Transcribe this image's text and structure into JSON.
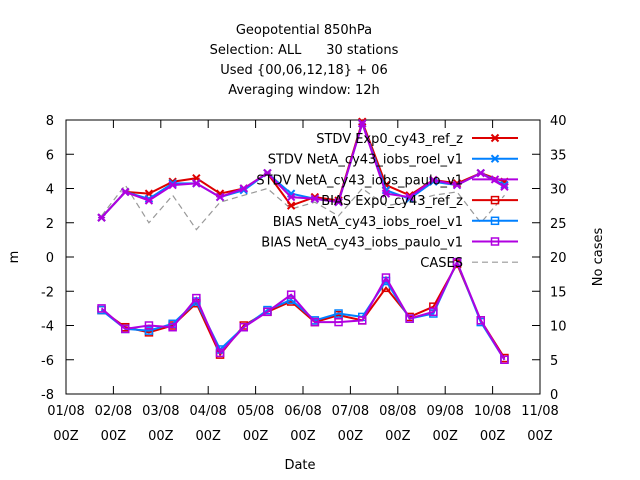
{
  "chart_data": {
    "type": "line",
    "title_lines": [
      "Geopotential 850hPa",
      "Selection: ALL      30 stations",
      "Used {00,06,12,18} + 06",
      "Averaging window: 12h"
    ],
    "xlabel": "Date",
    "ylabel": "m",
    "y2label": "No cases",
    "x_ticks": [
      {
        "x": 0,
        "line1": "01/08",
        "line2": "00Z"
      },
      {
        "x": 1,
        "line1": "02/08",
        "line2": "00Z"
      },
      {
        "x": 2,
        "line1": "03/08",
        "line2": "00Z"
      },
      {
        "x": 3,
        "line1": "04/08",
        "line2": "00Z"
      },
      {
        "x": 4,
        "line1": "05/08",
        "line2": "00Z"
      },
      {
        "x": 5,
        "line1": "06/08",
        "line2": "00Z"
      },
      {
        "x": 6,
        "line1": "07/08",
        "line2": "00Z"
      },
      {
        "x": 7,
        "line1": "08/08",
        "line2": "00Z"
      },
      {
        "x": 8,
        "line1": "09/08",
        "line2": "00Z"
      },
      {
        "x": 9,
        "line1": "10/08",
        "line2": "00Z"
      },
      {
        "x": 10,
        "line1": "11/08",
        "line2": "00Z"
      }
    ],
    "xlim": [
      0,
      10
    ],
    "ylim": [
      -8,
      8
    ],
    "y_ticks": [
      "-8",
      "-6",
      "-4",
      "-2",
      "0",
      "2",
      "4",
      "6",
      "8"
    ],
    "y2lim": [
      0,
      40
    ],
    "y2_ticks": [
      "0",
      "5",
      "10",
      "15",
      "20",
      "25",
      "30",
      "35",
      "40"
    ],
    "x": [
      0.75,
      1.25,
      1.75,
      2.25,
      2.75,
      3.25,
      3.75,
      4.25,
      4.75,
      5.25,
      5.75,
      6.25,
      6.75,
      7.25,
      7.75,
      8.25,
      8.75,
      9.25
    ],
    "series": [
      {
        "name": "STDV Exp0_cy43_ref_z",
        "axis": "y",
        "color": "#dd0000",
        "marker": "x",
        "dash": "",
        "values": [
          2.3,
          3.8,
          3.7,
          4.4,
          4.6,
          3.7,
          4.0,
          4.9,
          3.0,
          3.5,
          3.3,
          7.9,
          4.2,
          3.6,
          4.5,
          4.3,
          4.9,
          4.4
        ]
      },
      {
        "name": "STDV NetA_cy43_iobs_roel_v1",
        "axis": "y",
        "color": "#0080ff",
        "marker": "x",
        "dash": "",
        "values": [
          2.3,
          3.8,
          3.4,
          4.3,
          4.3,
          3.5,
          3.9,
          4.9,
          3.7,
          3.4,
          3.2,
          7.8,
          3.9,
          3.4,
          4.4,
          4.2,
          4.9,
          4.2
        ]
      },
      {
        "name": "STDV NetA_cy43_iobs_paulo_v1",
        "axis": "y",
        "color": "#b000e0",
        "marker": "x",
        "dash": "",
        "values": [
          2.3,
          3.8,
          3.3,
          4.2,
          4.3,
          3.5,
          4.0,
          4.9,
          3.5,
          3.4,
          3.2,
          7.8,
          3.7,
          3.5,
          4.5,
          4.2,
          4.9,
          4.1
        ]
      },
      {
        "name": "BIAS Exp0_cy43_ref_z",
        "axis": "y",
        "color": "#dd0000",
        "marker": "square",
        "dash": "",
        "values": [
          -3.1,
          -4.1,
          -4.4,
          -4.0,
          -2.7,
          -5.7,
          -4.0,
          -3.2,
          -2.6,
          -3.8,
          -3.4,
          -3.7,
          -1.8,
          -3.5,
          -2.9,
          -0.4,
          -3.7,
          -5.9
        ]
      },
      {
        "name": "BIAS NetA_cy43_iobs_roel_v1",
        "axis": "y",
        "color": "#0080ff",
        "marker": "square",
        "dash": "",
        "values": [
          -3.1,
          -4.2,
          -4.3,
          -3.9,
          -2.6,
          -5.4,
          -4.1,
          -3.1,
          -2.5,
          -3.7,
          -3.3,
          -3.5,
          -1.4,
          -3.6,
          -3.3,
          -0.3,
          -3.8,
          -6.0
        ]
      },
      {
        "name": "BIAS NetA_cy43_iobs_paulo_v1",
        "axis": "y",
        "color": "#b000e0",
        "marker": "square",
        "dash": "",
        "values": [
          -3.0,
          -4.2,
          -4.0,
          -4.1,
          -2.4,
          -5.6,
          -4.1,
          -3.2,
          -2.2,
          -3.8,
          -3.8,
          -3.7,
          -1.2,
          -3.6,
          -3.2,
          -0.3,
          -3.7,
          -6.0
        ]
      },
      {
        "name": "CASES",
        "axis": "y2",
        "color": "#999999",
        "marker": "none",
        "dash": "6,4",
        "values": [
          26,
          30.5,
          25,
          29,
          24,
          28,
          29,
          30,
          27,
          28,
          26,
          30,
          27.5,
          28,
          29,
          29.5,
          25,
          29
        ]
      }
    ],
    "legend_position": "top-right",
    "grid": false
  }
}
